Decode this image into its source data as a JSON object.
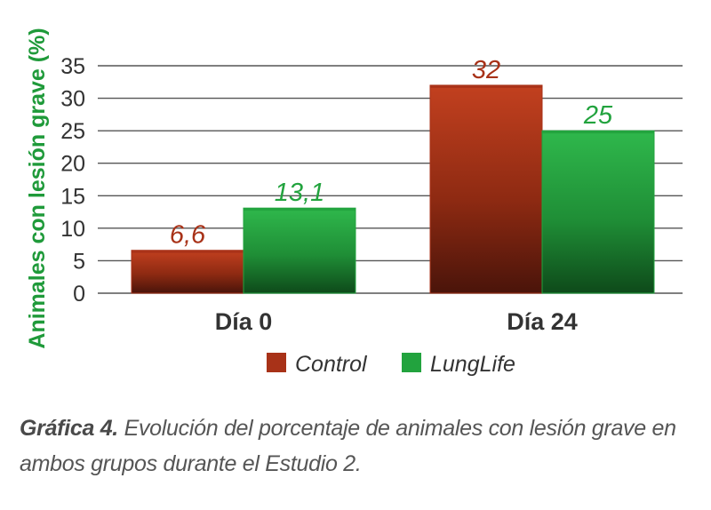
{
  "chart_data": {
    "type": "bar",
    "title": "",
    "xlabel": "",
    "ylabel": "Animales con lesión grave (%)",
    "ylim": [
      0,
      35
    ],
    "yticks": [
      0,
      5,
      10,
      15,
      20,
      25,
      30,
      35
    ],
    "categories": [
      "Día 0",
      "Día 24"
    ],
    "series": [
      {
        "name": "Control",
        "values": [
          6.6,
          32
        ],
        "labels": [
          "6,6",
          "32"
        ],
        "color": "#a83218"
      },
      {
        "name": "LungLife",
        "values": [
          13.1,
          25
        ],
        "labels": [
          "13,1",
          "25"
        ],
        "color": "#22a33e"
      }
    ],
    "grid": true,
    "legend": "bottom"
  },
  "caption": {
    "lead": "Gráfica 4.",
    "text": " Evolución del porcentaje de animales con lesión grave en ambos grupos durante el Estudio 2."
  },
  "colors": {
    "ylabel": "#1f9a3a",
    "axis_text": "#333333",
    "grid": "#555555"
  }
}
